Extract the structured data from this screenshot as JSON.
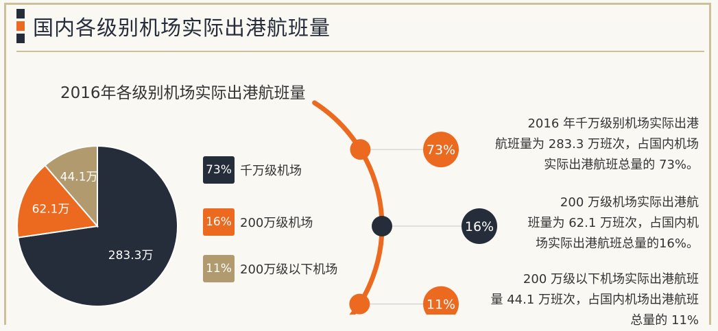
{
  "header": {
    "title": "国内各级别机场实际出港航班量",
    "colors": [
      "#252d3a",
      "#ec6a1f",
      "#252d3a"
    ]
  },
  "chart_data": {
    "type": "pie",
    "title": "2016年各级别机场实际出港航班量",
    "slices": [
      {
        "label": "283.3万",
        "value": 283.3,
        "color": "#252d3a"
      },
      {
        "label": "62.1万",
        "value": 62.1,
        "color": "#ec6a1f"
      },
      {
        "label": "44.1万",
        "value": 44.1,
        "color": "#b09a6e"
      }
    ]
  },
  "legend": [
    {
      "pct": "73%",
      "label": "千万级机场",
      "color": "#252d3a"
    },
    {
      "pct": "16%",
      "label": "200万级机场",
      "color": "#ec6a1f"
    },
    {
      "pct": "11%",
      "label": "200万级以下机场",
      "color": "#b09a6e"
    }
  ],
  "notes": [
    {
      "pct": "73%",
      "color": "#ec6a1f",
      "lines": [
        "2016 年千万级别机场实际出港",
        "航班量为 283.3 万班次，占国内机场",
        "实际出港航班总量的 73%。"
      ]
    },
    {
      "pct": "16%",
      "color": "#252d3a",
      "lines": [
        "200 万级机场实际出港航",
        "班量为 62.1 万班次，占国内机",
        "场实际出港航班总量的16%。"
      ]
    },
    {
      "pct": "11%",
      "color": "#ec6a1f",
      "lines": [
        "200 万级以下机场实际出港航班",
        "量 44.1 万班次，占国内机场出港航班",
        "总量的 11%"
      ]
    }
  ]
}
